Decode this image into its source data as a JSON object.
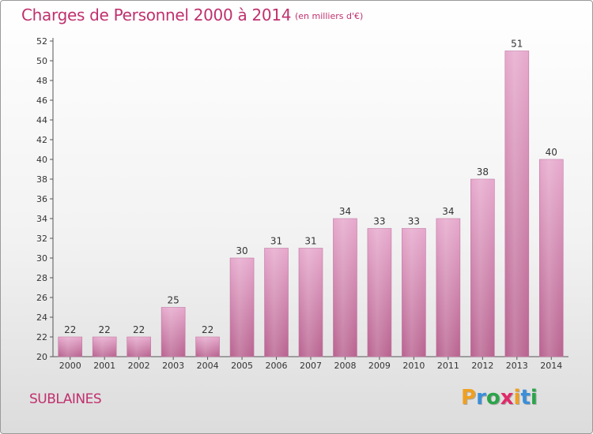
{
  "header": {
    "title": "Charges de Personnel 2000 à 2014",
    "subtitle": "(en milliers d'€)"
  },
  "footer": {
    "commune": "SUBLAINES",
    "logo_letters": [
      "P",
      "r",
      "o",
      "x",
      "i",
      "t",
      "i"
    ],
    "logo_colors": [
      "#f0a020",
      "#3a8fd8",
      "#2ca44a",
      "#e02a6a",
      "#f0a020",
      "#3a8fd8",
      "#2ca44a"
    ]
  },
  "chart_data": {
    "type": "bar",
    "title": "Charges de Personnel 2000 à 2014",
    "categories": [
      "2000",
      "2001",
      "2002",
      "2003",
      "2004",
      "2005",
      "2006",
      "2007",
      "2008",
      "2009",
      "2010",
      "2011",
      "2012",
      "2013",
      "2014"
    ],
    "values": [
      22,
      22,
      22,
      25,
      22,
      30,
      31,
      31,
      34,
      33,
      33,
      34,
      38,
      51,
      40
    ],
    "ylim": [
      20,
      52
    ],
    "yticks": [
      20,
      22,
      24,
      26,
      28,
      30,
      32,
      34,
      36,
      38,
      40,
      42,
      44,
      46,
      48,
      50,
      52
    ],
    "grid": false,
    "bar_color": "#d98ab7",
    "bar_color_dark": "#c66f9f"
  }
}
